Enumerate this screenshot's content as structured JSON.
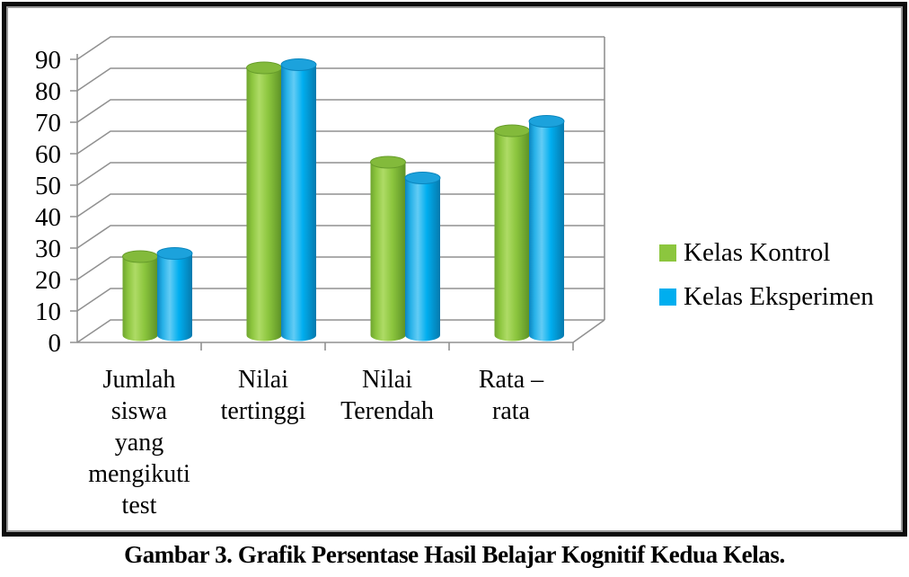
{
  "figure": {
    "caption": "Gambar 3. Grafik Persentase Hasil Belajar Kognitif Kedua Kelas."
  },
  "chart_data": {
    "type": "bar",
    "subtype": "3d-cylinder",
    "title": "",
    "xlabel": "",
    "ylabel": "",
    "categories": [
      "Jumlah siswa yang mengikuti test",
      "Nilai tertinggi",
      "Nilai Terendah",
      "Rata – rata"
    ],
    "category_lines": [
      [
        "Jumlah",
        "siswa",
        "yang",
        "mengikuti",
        "test"
      ],
      [
        "Nilai",
        "tertinggi"
      ],
      [
        "Nilai",
        "Terendah"
      ],
      [
        "Rata –",
        "rata"
      ]
    ],
    "series": [
      {
        "name": "Kelas Kontrol",
        "color": "#8CC63E",
        "values": [
          25,
          85,
          55,
          65
        ]
      },
      {
        "name": "Kelas Eksperimen",
        "color": "#00AEEF",
        "values": [
          26,
          86,
          50,
          68
        ]
      }
    ],
    "ylim": [
      0,
      90
    ],
    "y_ticks": [
      0,
      10,
      20,
      30,
      40,
      50,
      60,
      70,
      80,
      90
    ],
    "grid": true,
    "legend_position": "right"
  },
  "colors": {
    "grid": "#919191",
    "axis": "#919191",
    "text": "#000000",
    "frame_border": "#0d0d0d",
    "background": "#ffffff",
    "series_green": "#8CC63E",
    "series_blue": "#00AEEF"
  }
}
